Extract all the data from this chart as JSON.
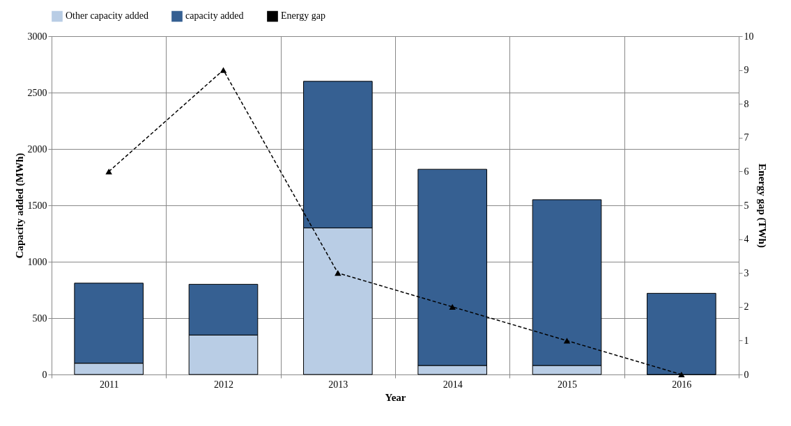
{
  "chart_data": {
    "type": "bar",
    "stacked": true,
    "xlabel": "Year",
    "ylabel": "Capacity added (MWh)",
    "y2label": "Energy gap (TWh)",
    "categories": [
      "2011",
      "2012",
      "2013",
      "2014",
      "2015",
      "2016"
    ],
    "series": [
      {
        "name": "Other capacity added",
        "color": "#b9cde5",
        "values": [
          100,
          350,
          1300,
          80,
          80,
          0
        ]
      },
      {
        "name": "capacity added",
        "color": "#366092",
        "values": [
          710,
          450,
          1300,
          1740,
          1470,
          720
        ]
      },
      {
        "name": "Energy gap",
        "type": "line",
        "axis": "y2",
        "color": "#000000",
        "marker": "triangle",
        "line_style": "dashed",
        "values": [
          6,
          9,
          3,
          2,
          1,
          0
        ]
      }
    ],
    "ylim": [
      0,
      3000
    ],
    "yticks": [
      0,
      500,
      1000,
      1500,
      2000,
      2500,
      3000
    ],
    "y2lim": [
      0,
      10
    ],
    "y2ticks": [
      0,
      1,
      2,
      3,
      4,
      5,
      6,
      7,
      8,
      9,
      10
    ],
    "grid": true,
    "legend": "top"
  }
}
